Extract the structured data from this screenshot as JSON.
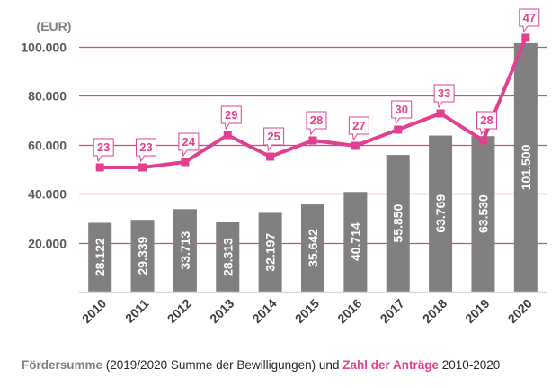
{
  "chart_data": {
    "type": "bar",
    "combo": "bar+line",
    "categories": [
      "2010",
      "2011",
      "2012",
      "2013",
      "2014",
      "2015",
      "2016",
      "2017",
      "2018",
      "2019",
      "2020"
    ],
    "series": [
      {
        "name": "Fördersumme",
        "type": "bar",
        "axis": "primary",
        "values": [
          28122,
          29339,
          33713,
          28313,
          32197,
          35642,
          40714,
          55850,
          63769,
          63530,
          101500
        ],
        "labels": [
          "28.122",
          "29.339",
          "33.713",
          "28.313",
          "32.197",
          "35.642",
          "40.714",
          "55.850",
          "63.769",
          "63.530",
          "101.500"
        ],
        "color": "#808080"
      },
      {
        "name": "Zahl der Anträge",
        "type": "line",
        "axis": "secondary",
        "values": [
          23,
          23,
          24,
          29,
          25,
          28,
          27,
          30,
          33,
          28,
          47
        ],
        "color": "#e0408f"
      }
    ],
    "yunit": "(EUR)",
    "ylim": [
      0,
      100000
    ],
    "yticks": [
      20000,
      40000,
      60000,
      80000,
      100000
    ],
    "ytick_labels": [
      "20.000",
      "40.000",
      "60.000",
      "80.000",
      "100.000"
    ],
    "y2lim": [
      0,
      45.33
    ],
    "y2_visible": false,
    "grid": true,
    "grid_color": "#e0408f",
    "xlabel": "",
    "ylabel": "(EUR)",
    "legend": "none",
    "caption": {
      "part1": "Fördersumme",
      "part2": " (2019/2020 Summe der Bewilligungen) und ",
      "part3": "Zahl der Anträge",
      "part4": " 2010-2020"
    }
  }
}
